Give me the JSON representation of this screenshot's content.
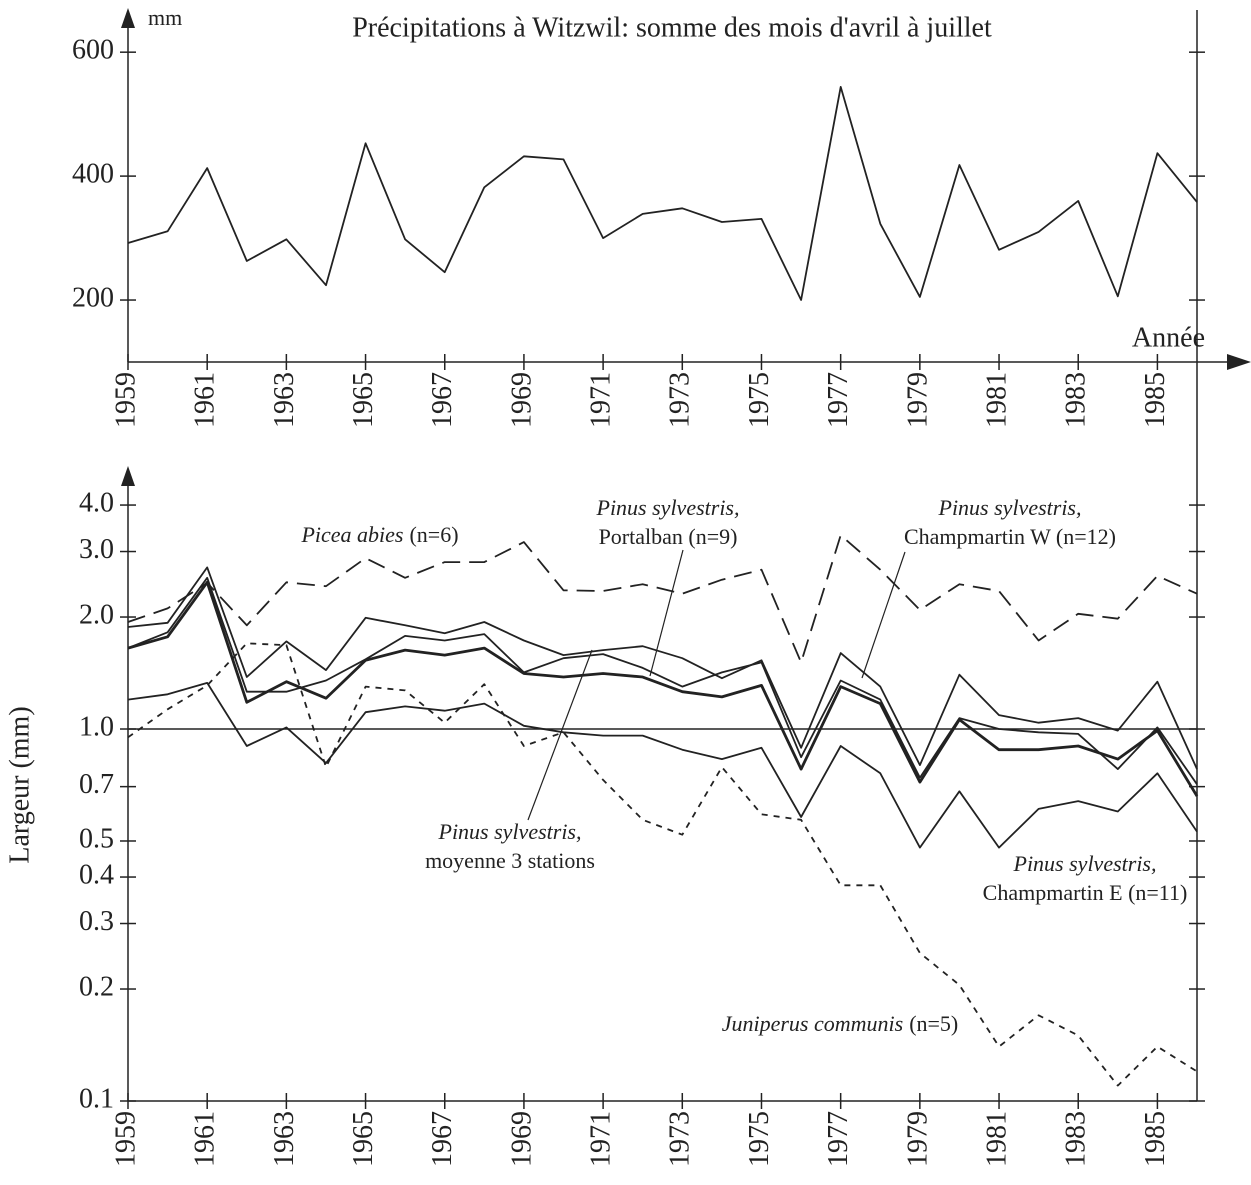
{
  "chart_data": [
    {
      "type": "line",
      "title": "Précipitations à Witzwil: somme des mois d'avril à juillet",
      "y_unit": "mm",
      "xlabel": "Année",
      "x": [
        1959,
        1960,
        1961,
        1962,
        1963,
        1964,
        1965,
        1966,
        1967,
        1968,
        1969,
        1970,
        1971,
        1972,
        1973,
        1974,
        1975,
        1976,
        1977,
        1978,
        1979,
        1980,
        1981,
        1982,
        1983,
        1984,
        1985,
        1986
      ],
      "values": [
        292,
        311,
        413,
        263,
        298,
        224,
        453,
        298,
        245,
        382,
        432,
        427,
        300,
        339,
        348,
        326,
        331,
        200,
        544,
        323,
        205,
        418,
        281,
        310,
        360,
        206,
        437,
        358
      ],
      "color": "#222222",
      "xlim": [
        1959,
        1986
      ],
      "xticks": [
        1959,
        1961,
        1963,
        1965,
        1967,
        1969,
        1971,
        1973,
        1975,
        1977,
        1979,
        1981,
        1983,
        1985
      ],
      "ylim": [
        100,
        660
      ],
      "yticks": [
        200,
        400,
        600
      ]
    },
    {
      "type": "line",
      "ylabel": "Largeur (mm)",
      "yscale": "log",
      "reference_line": 1,
      "x": [
        1959,
        1960,
        1961,
        1962,
        1963,
        1964,
        1965,
        1966,
        1967,
        1968,
        1969,
        1970,
        1971,
        1972,
        1973,
        1974,
        1975,
        1976,
        1977,
        1978,
        1979,
        1980,
        1981,
        1982,
        1983,
        1984,
        1985,
        1986
      ],
      "xlim": [
        1959,
        1986
      ],
      "xticks": [
        1959,
        1961,
        1963,
        1965,
        1967,
        1969,
        1971,
        1973,
        1975,
        1977,
        1979,
        1981,
        1983,
        1985
      ],
      "ylim": [
        0.1,
        5
      ],
      "yticks": [
        0.1,
        0.2,
        0.3,
        0.4,
        0.5,
        0.7,
        {
          "value": 1,
          "label": "1.0"
        },
        {
          "value": 2,
          "label": "2.0"
        },
        {
          "value": 3,
          "label": "3.0"
        },
        {
          "value": 4,
          "label": "4.0"
        }
      ],
      "series": [
        {
          "name": "Picea abies",
          "detail": "(n=6)",
          "color": "#222222",
          "line_style": "dashed",
          "values": [
            1.94,
            2.11,
            2.47,
            1.9,
            2.48,
            2.42,
            2.88,
            2.55,
            2.81,
            2.81,
            3.18,
            2.36,
            2.35,
            2.45,
            2.31,
            2.52,
            2.68,
            1.51,
            3.32,
            2.68,
            2.09,
            2.45,
            2.35,
            1.73,
            2.04,
            1.98,
            2.58,
            2.31
          ]
        },
        {
          "name": "Juniperus communis",
          "detail": "(n=5)",
          "color": "#222222",
          "line_style": "dotted",
          "values": [
            0.95,
            1.13,
            1.31,
            1.7,
            1.68,
            0.79,
            1.3,
            1.27,
            1.04,
            1.32,
            0.9,
            0.98,
            0.73,
            0.57,
            0.52,
            0.79,
            0.59,
            0.57,
            0.38,
            0.38,
            0.25,
            0.205,
            0.14,
            0.17,
            0.15,
            0.11,
            0.14,
            0.12
          ]
        },
        {
          "name": "Pinus sylvestris,",
          "detail": "Portalban (n=9)",
          "color": "#222222",
          "line_style": "solid",
          "values": [
            1.88,
            1.93,
            2.72,
            1.38,
            1.72,
            1.44,
            1.99,
            1.9,
            1.81,
            1.94,
            1.73,
            1.58,
            1.63,
            1.67,
            1.55,
            1.37,
            1.53,
            0.89,
            1.6,
            1.3,
            0.8,
            1.4,
            1.09,
            1.04,
            1.07,
            0.99,
            1.34,
            0.78
          ]
        },
        {
          "name": "Pinus sylvestris,",
          "detail": "Champmartin W (n=12)",
          "color": "#222222",
          "line_style": "solid",
          "values": [
            1.65,
            1.82,
            2.55,
            1.26,
            1.26,
            1.35,
            1.54,
            1.78,
            1.73,
            1.8,
            1.42,
            1.55,
            1.59,
            1.46,
            1.3,
            1.42,
            1.51,
            0.84,
            1.35,
            1.2,
            0.74,
            1.07,
            1.0,
            0.98,
            0.97,
            0.78,
            1.01,
            0.71
          ]
        },
        {
          "name": "Pinus sylvestris,",
          "detail": "moyenne 3 stations",
          "color": "#222222",
          "line_style": "bold",
          "values": [
            1.65,
            1.77,
            2.48,
            1.18,
            1.34,
            1.21,
            1.53,
            1.63,
            1.58,
            1.65,
            1.41,
            1.38,
            1.41,
            1.38,
            1.26,
            1.22,
            1.31,
            0.78,
            1.3,
            1.17,
            0.72,
            1.06,
            0.88,
            0.88,
            0.9,
            0.83,
            0.99,
            0.66
          ]
        },
        {
          "name": "Pinus sylvestris,",
          "detail": "Champmartin E (n=11)",
          "color": "#222222",
          "line_style": "solid",
          "values": [
            1.2,
            1.24,
            1.33,
            0.9,
            1.01,
            0.81,
            1.11,
            1.15,
            1.12,
            1.17,
            1.02,
            0.98,
            0.96,
            0.96,
            0.88,
            0.83,
            0.89,
            0.58,
            0.9,
            0.76,
            0.48,
            0.68,
            0.48,
            0.61,
            0.64,
            0.6,
            0.76,
            0.53
          ]
        }
      ]
    }
  ]
}
